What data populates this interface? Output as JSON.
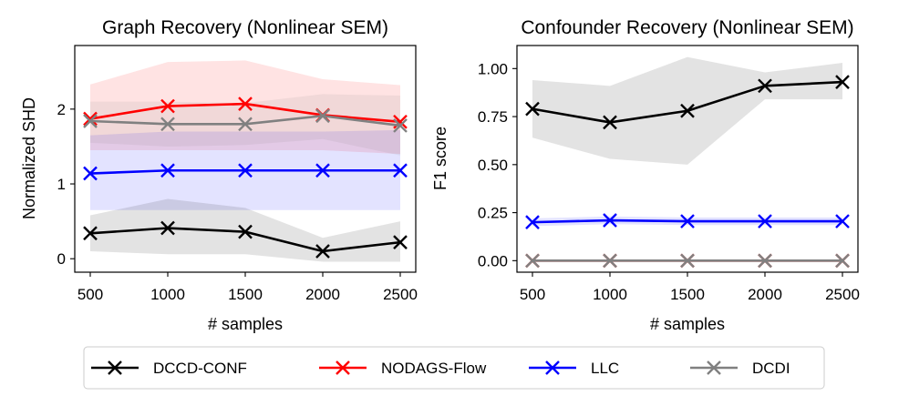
{
  "chart_data": [
    {
      "type": "line",
      "title": "Graph Recovery (Nonlinear SEM)",
      "xlabel": "# samples",
      "ylabel": "Normalized SHD",
      "x": [
        500,
        1000,
        1500,
        2000,
        2500
      ],
      "xlim": [
        400,
        2600
      ],
      "ylim": [
        -0.18,
        2.85
      ],
      "yticks": [
        0,
        1,
        2
      ],
      "series": [
        {
          "name": "DCCD-CONF",
          "values": [
            0.34,
            0.41,
            0.36,
            0.1,
            0.22
          ],
          "lower": [
            0.1,
            0.06,
            0.06,
            -0.04,
            -0.04
          ],
          "upper": [
            0.58,
            0.8,
            0.68,
            0.28,
            0.5
          ]
        },
        {
          "name": "NODAGS-Flow",
          "values": [
            1.87,
            2.04,
            2.07,
            1.92,
            1.83
          ],
          "lower": [
            1.45,
            1.45,
            1.45,
            1.45,
            1.4
          ],
          "upper": [
            2.33,
            2.63,
            2.65,
            2.4,
            2.32
          ]
        },
        {
          "name": "LLC",
          "values": [
            1.14,
            1.18,
            1.18,
            1.18,
            1.18
          ],
          "lower": [
            0.65,
            0.65,
            0.65,
            0.65,
            0.65
          ],
          "upper": [
            1.65,
            1.7,
            1.7,
            1.7,
            1.72
          ]
        },
        {
          "name": "DCDI",
          "values": [
            1.84,
            1.8,
            1.8,
            1.91,
            1.78
          ],
          "lower": [
            1.55,
            1.5,
            1.52,
            1.6,
            1.38
          ],
          "upper": [
            2.1,
            2.1,
            2.08,
            2.2,
            2.18
          ]
        }
      ]
    },
    {
      "type": "line",
      "title": "Confounder Recovery (Nonlinear SEM)",
      "xlabel": "# samples",
      "ylabel": "F1 score",
      "x": [
        500,
        1000,
        1500,
        2000,
        2500
      ],
      "xlim": [
        400,
        2600
      ],
      "ylim": [
        -0.06,
        1.12
      ],
      "yticks": [
        0.0,
        0.25,
        0.5,
        0.75,
        1.0
      ],
      "series": [
        {
          "name": "DCCD-CONF",
          "values": [
            0.79,
            0.72,
            0.78,
            0.91,
            0.93
          ],
          "lower": [
            0.64,
            0.53,
            0.5,
            0.84,
            0.84
          ],
          "upper": [
            0.94,
            0.91,
            1.06,
            0.98,
            1.03
          ]
        },
        {
          "name": "NODAGS-Flow",
          "values": [
            0.0,
            0.0,
            0.0,
            0.0,
            0.0
          ],
          "lower": [
            0.0,
            0.0,
            0.0,
            0.0,
            0.0
          ],
          "upper": [
            0.0,
            0.0,
            0.0,
            0.0,
            0.0
          ]
        },
        {
          "name": "LLC",
          "values": [
            0.2,
            0.21,
            0.205,
            0.205,
            0.205
          ],
          "lower": [
            0.18,
            0.19,
            0.185,
            0.185,
            0.185
          ],
          "upper": [
            0.22,
            0.23,
            0.225,
            0.225,
            0.225
          ]
        },
        {
          "name": "DCDI",
          "values": [
            0.0,
            0.0,
            0.0,
            0.0,
            0.0
          ],
          "lower": [
            0.0,
            0.0,
            0.0,
            0.0,
            0.0
          ],
          "upper": [
            0.0,
            0.0,
            0.0,
            0.0,
            0.0
          ]
        }
      ]
    }
  ],
  "legend": {
    "entries": [
      {
        "label": "DCCD-CONF",
        "color": "#000000"
      },
      {
        "label": "NODAGS-Flow",
        "color": "#ff0000"
      },
      {
        "label": "LLC",
        "color": "#0000ff"
      },
      {
        "label": "DCDI",
        "color": "#808080"
      }
    ],
    "placement": "bottom-center"
  },
  "colors": {
    "DCCD-CONF": "#000000",
    "NODAGS-Flow": "#ff0000",
    "LLC": "#0000ff",
    "DCDI": "#808080"
  }
}
